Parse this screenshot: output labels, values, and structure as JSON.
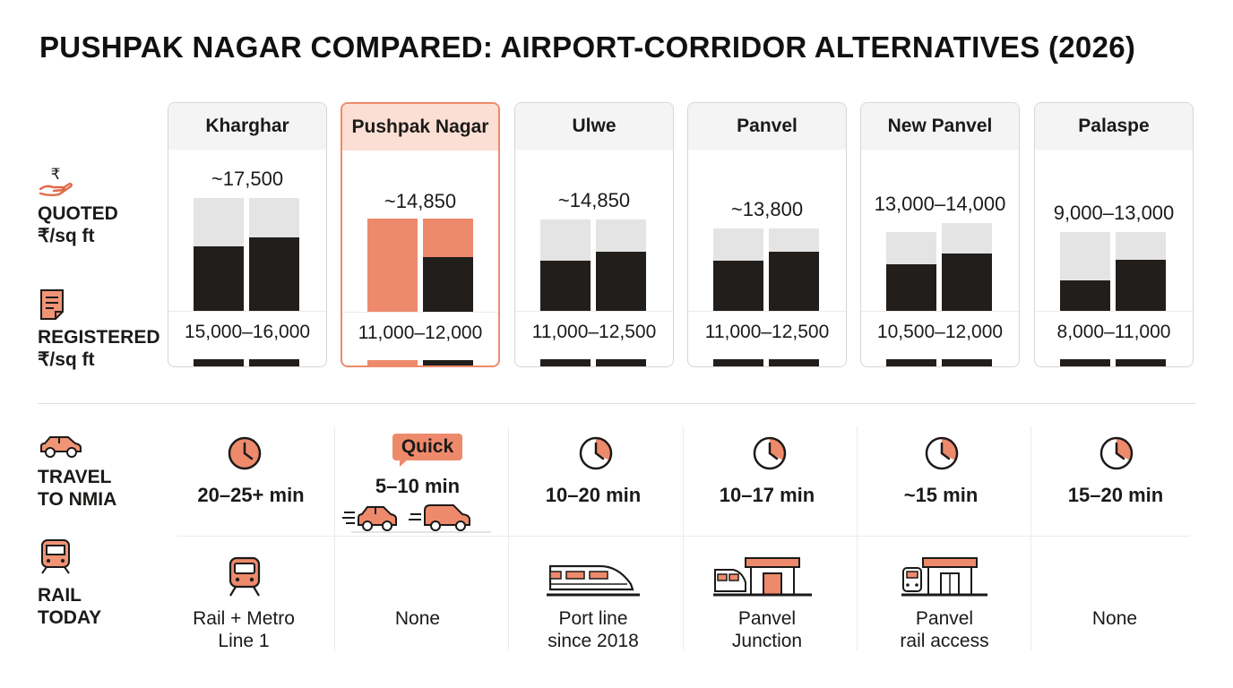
{
  "title": "PUSHPAK NAGAR COMPARED: AIRPORT-CORRIDOR ALTERNATIVES (2026)",
  "row_labels": {
    "quoted": {
      "line1": "QUOTED",
      "line2": "₹/sq ft",
      "icon": "rupee-hand-icon"
    },
    "registered": {
      "line1": "REGISTERED",
      "line2": "₹/sq ft",
      "icon": "document-icon"
    },
    "travel": {
      "line1": "TRAVEL",
      "line2": "TO NMIA",
      "icon": "car-icon"
    },
    "rail": {
      "line1": "RAIL",
      "line2": "TODAY",
      "icon": "train-icon"
    }
  },
  "colors": {
    "accent": "#ee8a6c",
    "dark": "#211e1c",
    "light_bar": "#e4e4e4"
  },
  "localities": [
    {
      "name": "Kharghar",
      "quoted": "~17,500",
      "registered": "15,000–16,000",
      "travel": "20–25+ min",
      "rail": [
        "Rail + Metro",
        "Line 1"
      ],
      "rail_icon": "metro-train-icon",
      "highlight": false
    },
    {
      "name": "Pushpak Nagar",
      "quoted": "~14,850",
      "registered": "11,000–12,000",
      "travel": "5–10 min",
      "travel_badge": "Quick",
      "rail": [
        "None"
      ],
      "rail_icon": "",
      "highlight": true
    },
    {
      "name": "Ulwe",
      "quoted": "~14,850",
      "registered": "11,000–12,500",
      "travel": "10–20 min",
      "rail": [
        "Port line",
        "since 2018"
      ],
      "rail_icon": "bullet-train-icon",
      "highlight": false
    },
    {
      "name": "Panvel",
      "quoted": "~13,800",
      "registered": "11,000–12,500",
      "travel": "10–17 min",
      "rail": [
        "Panvel",
        "Junction"
      ],
      "rail_icon": "train-station-icon",
      "highlight": false
    },
    {
      "name": "New Panvel",
      "quoted": "13,000–14,000",
      "registered": "10,500–12,000",
      "travel": "~15 min",
      "rail": [
        "Panvel",
        "rail access"
      ],
      "rail_icon": "station-icon",
      "highlight": false
    },
    {
      "name": "Palaspe",
      "quoted": "9,000–13,000",
      "registered": "8,000–11,000",
      "travel": "15–20 min",
      "rail": [
        "None"
      ],
      "rail_icon": "",
      "highlight": false
    }
  ]
}
